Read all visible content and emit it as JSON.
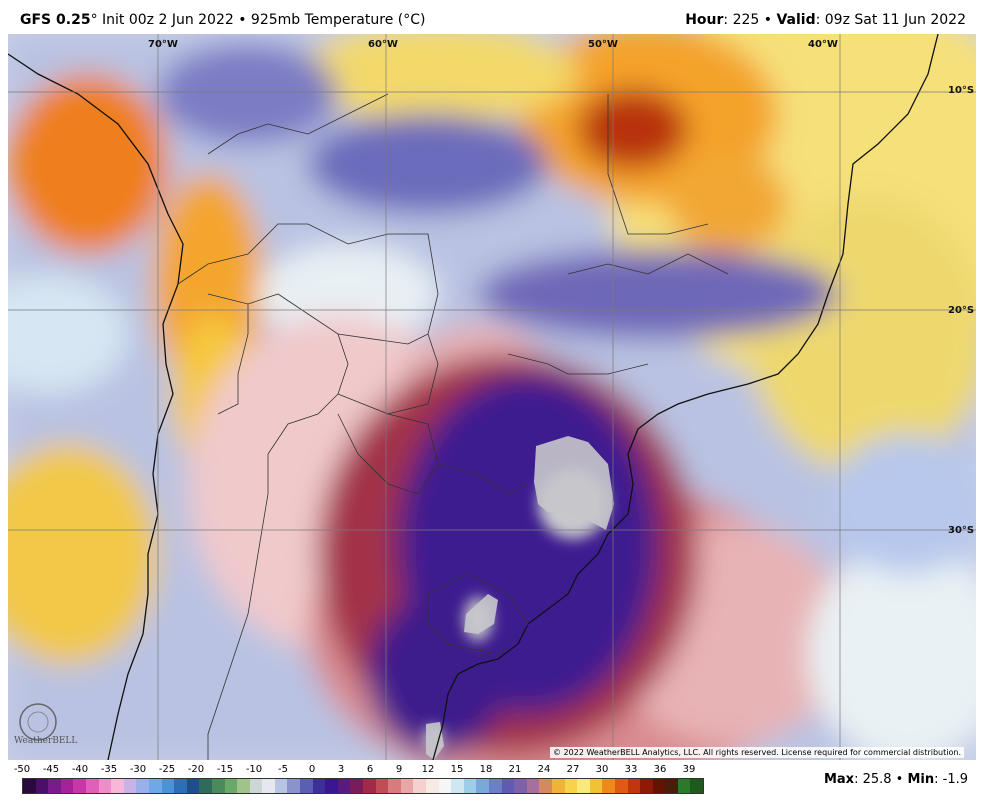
{
  "header": {
    "model": "GFS 0.25",
    "deg": "°",
    "init": " Init 00z 2 Jun 2022 • 925mb Temperature (°C)",
    "hour_label": "Hour",
    "hour_value": ": 225 • ",
    "valid_label": "Valid",
    "valid_value": ": 09z Sat 11 Jun 2022"
  },
  "map": {
    "lon_labels": [
      "70°W",
      "60°W",
      "50°W",
      "40°W"
    ],
    "lat_labels": [
      "10°S",
      "20°S",
      "30°S"
    ],
    "copyright": "© 2022 WeatherBELL Analytics, LLC. All rights reserved. License required for commercial distribution.",
    "logo": "WeatherBELL"
  },
  "colorbar": {
    "ticks": [
      "-50",
      "-45",
      "-40",
      "-35",
      "-30",
      "-25",
      "-20",
      "-15",
      "-10",
      "-5",
      "0",
      "3",
      "6",
      "9",
      "12",
      "15",
      "18",
      "21",
      "24",
      "27",
      "30",
      "33",
      "36",
      "39"
    ],
    "colors": [
      "#2a0a3e",
      "#4b0f6a",
      "#7a1a8e",
      "#a4229c",
      "#c836a7",
      "#e060b8",
      "#f08cc8",
      "#f7b7d9",
      "#c9b2e6",
      "#9bb0ea",
      "#6fa8e8",
      "#4b93d8",
      "#2d6fb6",
      "#1e4e8c",
      "#2f6b5a",
      "#4a8a5c",
      "#6aa86a",
      "#a0c38a",
      "#ccd6d6",
      "#e7e7ef",
      "#b9c4e5",
      "#8a93cc",
      "#5a5fb4",
      "#3d2f9a",
      "#3a1790",
      "#5a1a80",
      "#7a1c5c",
      "#a02a48",
      "#c04d55",
      "#d97a7d",
      "#e8a6a6",
      "#f4d0cf",
      "#f7e9e4",
      "#f4f7f6",
      "#cfe7f0",
      "#9fcde8",
      "#7aa8d8",
      "#6a7fc6",
      "#5f5bb5",
      "#7e62a8",
      "#a76f9c",
      "#d48a5f",
      "#f2b13a",
      "#f8d34a",
      "#f9e87a",
      "#f2c236",
      "#ee8a1c",
      "#e05a12",
      "#c1360c",
      "#8e1a06",
      "#661200",
      "#4a1c0c",
      "#2a7a2a",
      "#1e5a1e"
    ],
    "max_label": "Max",
    "max_value": ": 25.8 • ",
    "min_label": "Min",
    "min_value": ": -1.9"
  }
}
